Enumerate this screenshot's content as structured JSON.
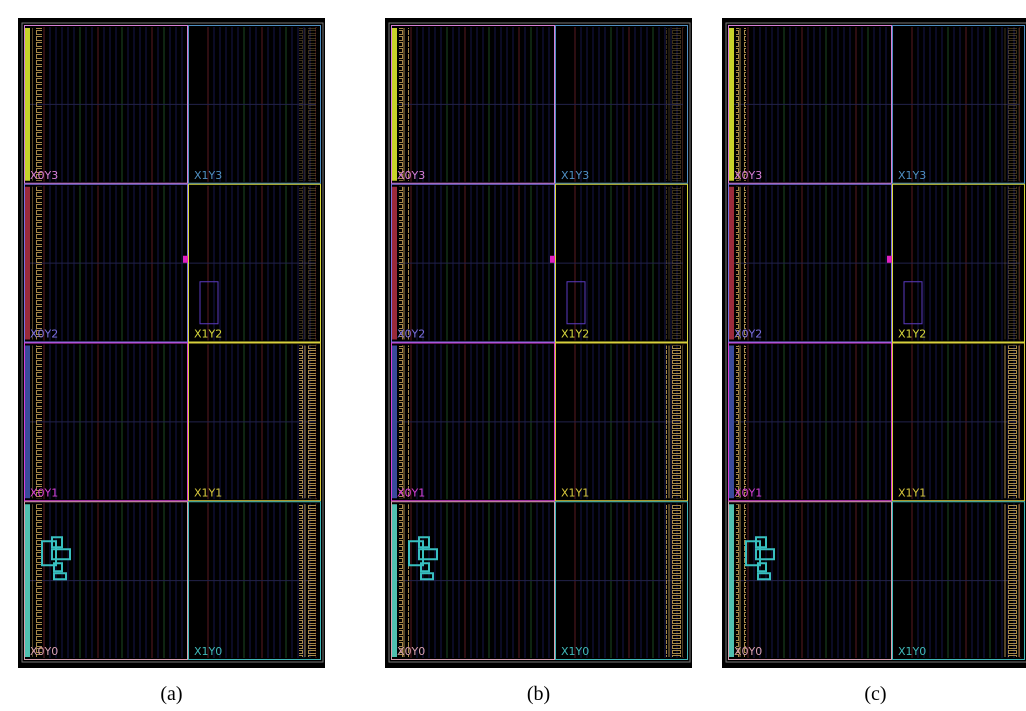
{
  "panels": [
    {
      "caption": "(a)",
      "regions": [
        {
          "label": "X0Y3",
          "color": "#d77fd7"
        },
        {
          "label": "X1Y3",
          "color": "#4f8fc2"
        },
        {
          "label": "X0Y2",
          "color": "#7b6fe0"
        },
        {
          "label": "X1Y2",
          "color": "#d8d83c"
        },
        {
          "label": "X0Y1",
          "color": "#d640d6"
        },
        {
          "label": "X1Y1",
          "color": "#d8c83c"
        },
        {
          "label": "X0Y0",
          "color": "#d7a0b0"
        },
        {
          "label": "X1Y0",
          "color": "#3fb8b8"
        }
      ]
    },
    {
      "caption": "(b)",
      "regions": [
        {
          "label": "X0Y3",
          "color": "#d77fd7"
        },
        {
          "label": "X1Y3",
          "color": "#4f8fc2"
        },
        {
          "label": "X0Y2",
          "color": "#7b6fe0"
        },
        {
          "label": "X1Y2",
          "color": "#d8d83c"
        },
        {
          "label": "X0Y1",
          "color": "#d640d6"
        },
        {
          "label": "X1Y1",
          "color": "#d8c83c"
        },
        {
          "label": "X0Y0",
          "color": "#d7a0b0"
        },
        {
          "label": "X1Y0",
          "color": "#3fb8b8"
        }
      ]
    },
    {
      "caption": "(c)",
      "regions": [
        {
          "label": "X0Y3",
          "color": "#d77fd7"
        },
        {
          "label": "X1Y3",
          "color": "#4f8fc2"
        },
        {
          "label": "X0Y2",
          "color": "#7b6fe0"
        },
        {
          "label": "X1Y2",
          "color": "#d8d83c"
        },
        {
          "label": "X0Y1",
          "color": "#d640d6"
        },
        {
          "label": "X1Y1",
          "color": "#d8c83c"
        },
        {
          "label": "X0Y0",
          "color": "#d7a0b0"
        },
        {
          "label": "X1Y0",
          "color": "#3fb8b8"
        }
      ]
    }
  ]
}
